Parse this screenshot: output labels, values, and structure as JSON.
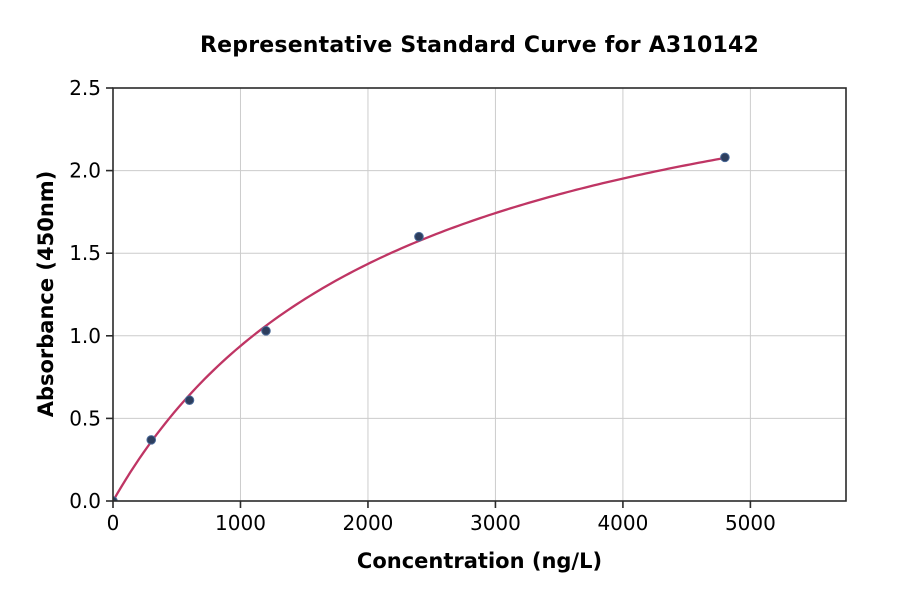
{
  "chart_data": {
    "type": "scatter",
    "title": "Representative Standard Curve for A310142",
    "xlabel": "Concentration (ng/L)",
    "ylabel": "Absorbance (450nm)",
    "x": [
      0,
      300,
      600,
      1200,
      2400,
      4800
    ],
    "y": [
      0.0,
      0.37,
      0.61,
      1.03,
      1.6,
      2.08
    ],
    "fit_curve": {
      "model": "michaelis-menten",
      "formula": "y = Vmax * x / (Km + x)",
      "vmax": 3.05,
      "km": 2250,
      "x_start": 0,
      "x_end": 4800
    },
    "xlim": [
      0,
      5750
    ],
    "ylim": [
      0,
      2.5
    ],
    "xticks": [
      0,
      1000,
      2000,
      3000,
      4000,
      5000
    ],
    "xtick_labels": [
      "0",
      "1000",
      "2000",
      "3000",
      "4000",
      "5000"
    ],
    "yticks": [
      0,
      0.5,
      1.0,
      1.5,
      2.0,
      2.5
    ],
    "ytick_labels": [
      "0.0",
      "0.5",
      "1.0",
      "1.5",
      "2.0",
      "2.5"
    ],
    "grid": true,
    "legend": "none",
    "colors": {
      "curve": "#bf3564",
      "marker_fill": "#2d3e5e",
      "marker_edge": "#4a6a99",
      "grid": "#cccccc",
      "spine": "#2a2a2a",
      "text": "#000000",
      "background": "#ffffff"
    }
  }
}
